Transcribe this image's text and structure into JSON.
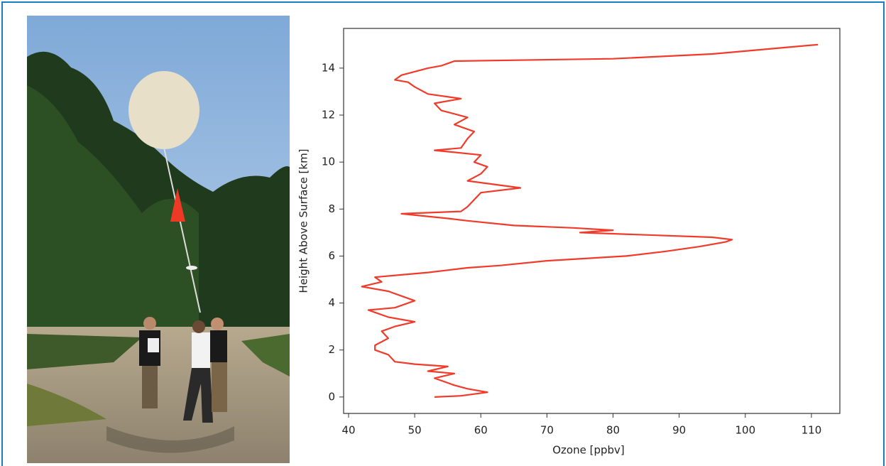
{
  "chart_data": {
    "type": "line",
    "x_label": "Ozone [ppbv]",
    "y_label": "Height Above Surface [km]",
    "x": [
      53,
      57,
      61,
      58,
      56,
      53,
      56,
      52,
      55,
      50,
      47,
      46,
      44,
      44,
      46,
      45,
      47,
      50,
      46,
      44,
      43,
      47,
      50,
      48,
      46,
      42,
      45,
      44,
      48,
      52,
      55,
      58,
      63,
      70,
      82,
      88,
      93,
      97,
      98,
      95,
      85,
      75,
      80,
      74,
      65,
      58,
      55,
      48,
      57,
      58,
      59,
      60,
      66,
      58,
      60,
      61,
      59,
      60,
      53,
      57,
      58,
      59,
      56,
      58,
      54,
      53,
      57,
      52,
      50,
      49,
      47,
      48,
      52,
      54,
      55,
      56,
      80,
      95,
      103,
      111
    ],
    "series": [
      {
        "color": "#f03a2a",
        "values": [
          0.0,
          0.05,
          0.2,
          0.35,
          0.5,
          0.8,
          1.0,
          1.1,
          1.3,
          1.4,
          1.5,
          1.8,
          2.0,
          2.2,
          2.5,
          2.8,
          3.0,
          3.2,
          3.4,
          3.6,
          3.7,
          3.8,
          4.1,
          4.3,
          4.5,
          4.7,
          4.9,
          5.1,
          5.2,
          5.3,
          5.4,
          5.5,
          5.6,
          5.8,
          6.0,
          6.2,
          6.4,
          6.6,
          6.7,
          6.8,
          6.9,
          7.0,
          7.1,
          7.2,
          7.3,
          7.5,
          7.6,
          7.8,
          7.9,
          8.1,
          8.4,
          8.7,
          8.9,
          9.2,
          9.5,
          9.8,
          10.0,
          10.3,
          10.5,
          10.6,
          11.0,
          11.3,
          11.6,
          11.9,
          12.2,
          12.5,
          12.7,
          12.9,
          13.2,
          13.4,
          13.5,
          13.7,
          14.0,
          14.1,
          14.2,
          14.3,
          14.4,
          14.6,
          14.8,
          15.0
        ]
      }
    ],
    "xlim": [
      39.25,
      114.3
    ],
    "ylim": [
      -0.7,
      15.69
    ],
    "xticks": [
      40,
      50,
      60,
      70,
      80,
      90,
      100,
      110
    ],
    "yticks": [
      0,
      2,
      4,
      6,
      8,
      10,
      12,
      14
    ]
  }
}
